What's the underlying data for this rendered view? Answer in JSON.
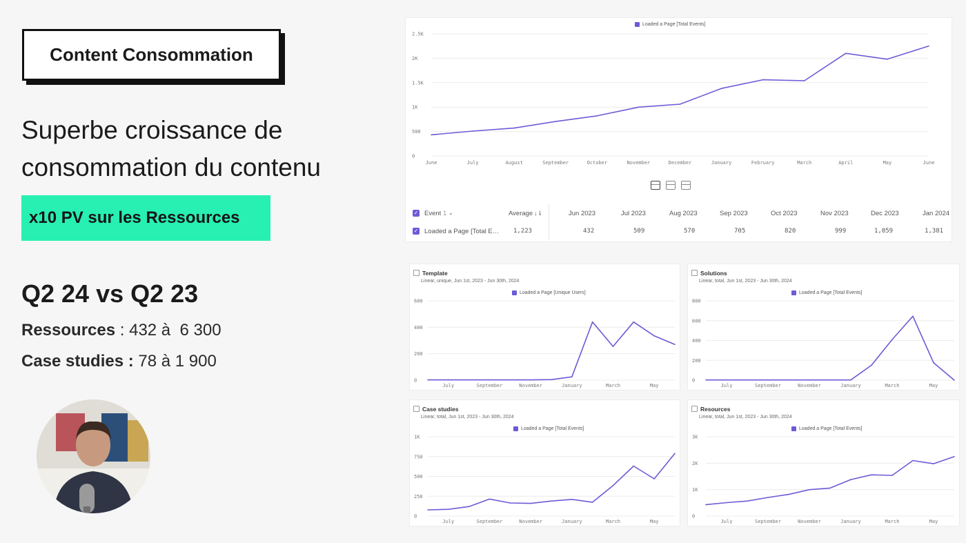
{
  "left": {
    "title": "Content Consommation",
    "headline": [
      "Superbe croissance de",
      "consommation du contenu"
    ],
    "highlight": "x10 PV sur les Ressources",
    "compare_title": "Q2 24 vs Q2 23",
    "stats": [
      {
        "label": "Ressources",
        "sep": " : ",
        "value": "432 à  6 300"
      },
      {
        "label": "Case studies :",
        "sep": " ",
        "value": "78 à 1 900"
      }
    ]
  },
  "colors": {
    "accent": "#27f0b2",
    "series": "#6b5bd6"
  },
  "main_chart": {
    "legend": "Loaded a Page [Total Events]",
    "table": {
      "headers": [
        "Event",
        "Average",
        "Jun 2023",
        "Jul 2023",
        "Aug 2023",
        "Sep 2023",
        "Oct 2023",
        "Nov 2023",
        "Dec 2023",
        "Jan 2024"
      ],
      "event_count": "1",
      "row": {
        "event": "Loaded a Page [Total E…",
        "values": [
          "1,223",
          "432",
          "509",
          "570",
          "705",
          "820",
          "999",
          "1,059",
          "1,381"
        ]
      }
    }
  },
  "panels": [
    {
      "title": "Template",
      "subtitle": "Linear, unique, Jun 1st, 2023 - Jun 30th, 2024",
      "legend": "Loaded a Page [Unique Users]"
    },
    {
      "title": "Solutions",
      "subtitle": "Linear, total, Jun 1st, 2023 - Jun 30th, 2024",
      "legend": "Loaded a Page [Total Events]"
    },
    {
      "title": "Case studies",
      "subtitle": "Linear, total, Jun 1st, 2023 - Jun 30th, 2024",
      "legend": "Loaded a Page [Total Events]"
    },
    {
      "title": "Resources",
      "subtitle": "Linear, total, Jun 1st, 2023 - Jun 30th, 2024",
      "legend": "Loaded a Page [Total Events]"
    }
  ],
  "chart_data": [
    {
      "type": "line",
      "x": [
        "June",
        "July",
        "August",
        "September",
        "October",
        "November",
        "December",
        "January",
        "February",
        "March",
        "April",
        "May",
        "June"
      ],
      "series": [
        {
          "name": "Loaded a Page [Total Events]",
          "values": [
            432,
            509,
            570,
            705,
            820,
            999,
            1059,
            1381,
            1560,
            1540,
            2100,
            1980,
            2250
          ]
        }
      ],
      "yticks": [
        "0",
        "500",
        "1K",
        "1.5K",
        "2K",
        "2.5K"
      ],
      "ylim": [
        0,
        2500
      ],
      "grid": true,
      "legend": "top-center"
    },
    {
      "type": "line",
      "x": [
        "Jun",
        "Jul",
        "Aug",
        "Sep",
        "Oct",
        "Nov",
        "Dec",
        "Jan",
        "Feb",
        "Mar",
        "Apr",
        "May",
        "Jun"
      ],
      "xticks": [
        "July",
        "September",
        "November",
        "January",
        "March",
        "May"
      ],
      "series": [
        {
          "name": "Loaded a Page [Unique Users]",
          "values": [
            2,
            2,
            2,
            2,
            2,
            2,
            4,
            25,
            440,
            255,
            440,
            335,
            270
          ]
        }
      ],
      "yticks": [
        "0",
        "200",
        "400",
        "600"
      ],
      "ylim": [
        0,
        600
      ]
    },
    {
      "type": "line",
      "x": [
        "Jun",
        "Jul",
        "Aug",
        "Sep",
        "Oct",
        "Nov",
        "Dec",
        "Jan",
        "Feb",
        "Mar",
        "Apr",
        "May",
        "Jun"
      ],
      "xticks": [
        "July",
        "September",
        "November",
        "January",
        "March",
        "May"
      ],
      "series": [
        {
          "name": "Loaded a Page [Total Events]",
          "values": [
            2,
            2,
            2,
            2,
            2,
            2,
            2,
            2,
            150,
            410,
            645,
            175,
            0
          ]
        }
      ],
      "yticks": [
        "0",
        "200",
        "400",
        "600",
        "800"
      ],
      "ylim": [
        0,
        800
      ]
    },
    {
      "type": "line",
      "x": [
        "Jun",
        "Jul",
        "Aug",
        "Sep",
        "Oct",
        "Nov",
        "Dec",
        "Jan",
        "Feb",
        "Mar",
        "Apr",
        "May",
        "Jun"
      ],
      "xticks": [
        "July",
        "September",
        "November",
        "January",
        "March",
        "May"
      ],
      "series": [
        {
          "name": "Loaded a Page [Total Events]",
          "values": [
            78,
            85,
            120,
            215,
            165,
            160,
            190,
            210,
            175,
            385,
            630,
            470,
            790
          ]
        }
      ],
      "yticks": [
        "0",
        "250",
        "500",
        "750",
        "1K"
      ],
      "ylim": [
        0,
        1000
      ]
    },
    {
      "type": "line",
      "x": [
        "Jun",
        "Jul",
        "Aug",
        "Sep",
        "Oct",
        "Nov",
        "Dec",
        "Jan",
        "Feb",
        "Mar",
        "Apr",
        "May",
        "Jun"
      ],
      "xticks": [
        "July",
        "September",
        "November",
        "January",
        "March",
        "May"
      ],
      "series": [
        {
          "name": "Loaded a Page [Total Events]",
          "values": [
            432,
            509,
            570,
            705,
            820,
            999,
            1059,
            1381,
            1560,
            1540,
            2100,
            1980,
            2250
          ]
        }
      ],
      "yticks": [
        "0",
        "1K",
        "2K",
        "3K"
      ],
      "ylim": [
        0,
        3000
      ]
    }
  ]
}
